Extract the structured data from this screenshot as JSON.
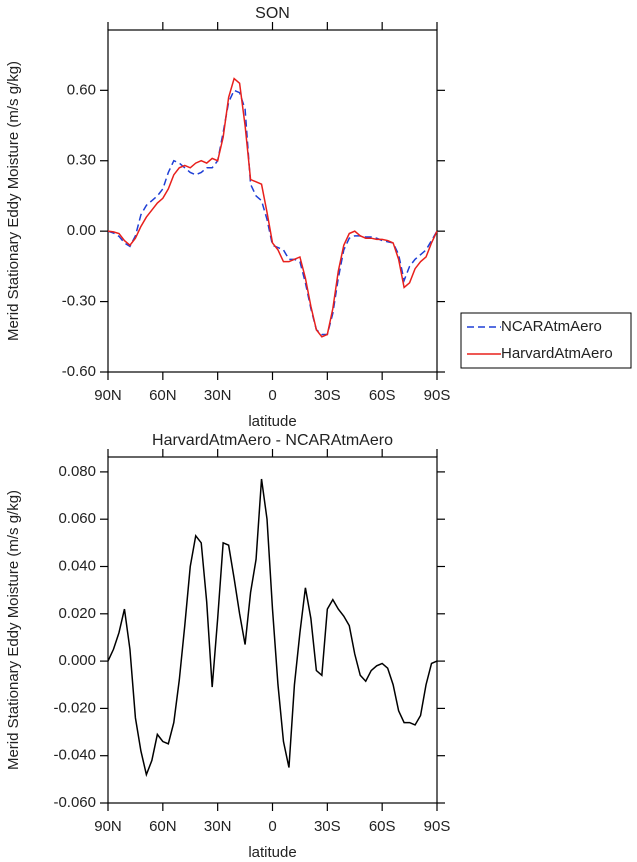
{
  "chart_data": [
    {
      "type": "line",
      "title": "SON",
      "xlabel": "latitude",
      "ylabel": "Merid Stationary Eddy Moisture (m/s g/kg)",
      "x": [
        90,
        87,
        84,
        81,
        78,
        75,
        72,
        69,
        66,
        63,
        60,
        57,
        54,
        51,
        48,
        45,
        42,
        39,
        36,
        33,
        30,
        27,
        24,
        21,
        18,
        15,
        12,
        9,
        6,
        3,
        0,
        -3,
        -6,
        -9,
        -12,
        -15,
        -18,
        -21,
        -24,
        -27,
        -30,
        -33,
        -36,
        -39,
        -42,
        -45,
        -48,
        -51,
        -54,
        -57,
        -60,
        -63,
        -66,
        -69,
        -72,
        -75,
        -78,
        -81,
        -84,
        -87,
        -90
      ],
      "series": [
        {
          "name": "NCARAtmAero",
          "color": "#1f3fd6",
          "linestyle": "dashed",
          "values": [
            0,
            -0.008,
            -0.022,
            -0.05,
            -0.065,
            -0.02,
            0.07,
            0.11,
            0.13,
            0.15,
            0.18,
            0.25,
            0.3,
            0.29,
            0.27,
            0.25,
            0.24,
            0.25,
            0.27,
            0.27,
            0.3,
            0.42,
            0.55,
            0.6,
            0.59,
            0.52,
            0.2,
            0.15,
            0.13,
            0.05,
            -0.06,
            -0.07,
            -0.08,
            -0.12,
            -0.12,
            -0.13,
            -0.22,
            -0.33,
            -0.42,
            -0.44,
            -0.44,
            -0.35,
            -0.2,
            -0.08,
            -0.03,
            -0.02,
            -0.02,
            -0.025,
            -0.025,
            -0.03,
            -0.04,
            -0.045,
            -0.05,
            -0.1,
            -0.21,
            -0.15,
            -0.12,
            -0.1,
            -0.08,
            -0.04,
            0
          ]
        },
        {
          "name": "HarvardAtmAero",
          "color": "#e8201c",
          "linestyle": "solid",
          "values": [
            0,
            -0.003,
            -0.01,
            -0.04,
            -0.06,
            -0.03,
            0.02,
            0.06,
            0.09,
            0.12,
            0.14,
            0.18,
            0.24,
            0.27,
            0.28,
            0.27,
            0.29,
            0.3,
            0.29,
            0.31,
            0.3,
            0.4,
            0.57,
            0.65,
            0.63,
            0.45,
            0.22,
            0.21,
            0.2,
            0.08,
            -0.05,
            -0.08,
            -0.13,
            -0.13,
            -0.12,
            -0.11,
            -0.2,
            -0.32,
            -0.42,
            -0.45,
            -0.44,
            -0.33,
            -0.17,
            -0.06,
            -0.01,
            0,
            -0.02,
            -0.03,
            -0.03,
            -0.035,
            -0.035,
            -0.04,
            -0.05,
            -0.12,
            -0.24,
            -0.22,
            -0.16,
            -0.13,
            -0.11,
            -0.05,
            0
          ]
        }
      ],
      "xlim": [
        90,
        -90
      ],
      "xticks": [
        {
          "value": 90,
          "label": "90N"
        },
        {
          "value": 60,
          "label": "60N"
        },
        {
          "value": 30,
          "label": "30N"
        },
        0,
        {
          "value": -30,
          "label": "30S"
        },
        {
          "value": -60,
          "label": "60S"
        },
        {
          "value": -90,
          "label": "90S"
        }
      ],
      "ylim": [
        -0.6,
        0.857
      ],
      "yticks": [
        {
          "value": -0.6,
          "label": "-0.60"
        },
        {
          "value": -0.3,
          "label": "-0.30"
        },
        {
          "value": 0,
          "label": "0.00"
        },
        {
          "value": 0.3,
          "label": "0.30"
        },
        {
          "value": 0.6,
          "label": "0.60"
        }
      ],
      "legend": "right"
    },
    {
      "type": "line",
      "title": "HarvardAtmAero - NCARAtmAero",
      "xlabel": "latitude",
      "ylabel": "Merid Stationary Eddy Moisture (m/s g/kg)",
      "x": [
        90,
        87,
        84,
        81,
        78,
        75,
        72,
        69,
        66,
        63,
        60,
        57,
        54,
        51,
        48,
        45,
        42,
        39,
        36,
        33,
        30,
        27,
        24,
        21,
        18,
        15,
        12,
        9,
        6,
        3,
        0,
        -3,
        -6,
        -9,
        -12,
        -15,
        -18,
        -21,
        -24,
        -27,
        -30,
        -33,
        -36,
        -39,
        -42,
        -45,
        -48,
        -51,
        -54,
        -57,
        -60,
        -63,
        -66,
        -69,
        -72,
        -75,
        -78,
        -81,
        -84,
        -87,
        -90
      ],
      "series": [
        {
          "color": "#000000",
          "linestyle": "solid",
          "values": [
            0,
            0.005,
            0.012,
            0.022,
            0.005,
            -0.024,
            -0.038,
            -0.048,
            -0.042,
            -0.031,
            -0.034,
            -0.035,
            -0.026,
            -0.008,
            0.015,
            0.04,
            0.053,
            0.05,
            0.025,
            -0.011,
            0.018,
            0.05,
            0.049,
            0.035,
            0.02,
            0.007,
            0.029,
            0.043,
            0.077,
            0.06,
            0.022,
            -0.01,
            -0.034,
            -0.045,
            -0.01,
            0.012,
            0.031,
            0.018,
            -0.004,
            -0.006,
            0.022,
            0.026,
            0.022,
            0.019,
            0.015,
            0.003,
            -0.006,
            -0.0085,
            -0.004,
            -0.002,
            -0.001,
            -0.003,
            -0.01,
            -0.021,
            -0.026,
            -0.026,
            -0.027,
            -0.023,
            -0.01,
            -0.001,
            0
          ]
        }
      ],
      "xlim": [
        90,
        -90
      ],
      "xticks": [
        {
          "value": 90,
          "label": "90N"
        },
        {
          "value": 60,
          "label": "60N"
        },
        {
          "value": 30,
          "label": "30N"
        },
        0,
        {
          "value": -30,
          "label": "30S"
        },
        {
          "value": -60,
          "label": "60S"
        },
        {
          "value": -90,
          "label": "90S"
        }
      ],
      "ylim": [
        -0.06,
        0.0863
      ],
      "yticks": [
        {
          "value": -0.06,
          "label": "-0.060"
        },
        {
          "value": -0.04,
          "label": "-0.040"
        },
        {
          "value": -0.02,
          "label": "-0.020"
        },
        {
          "value": 0,
          "label": "0.000"
        },
        {
          "value": 0.02,
          "label": "0.020"
        },
        {
          "value": 0.04,
          "label": "0.040"
        },
        {
          "value": 0.06,
          "label": "0.060"
        },
        {
          "value": 0.08,
          "label": "0.080"
        }
      ]
    }
  ]
}
